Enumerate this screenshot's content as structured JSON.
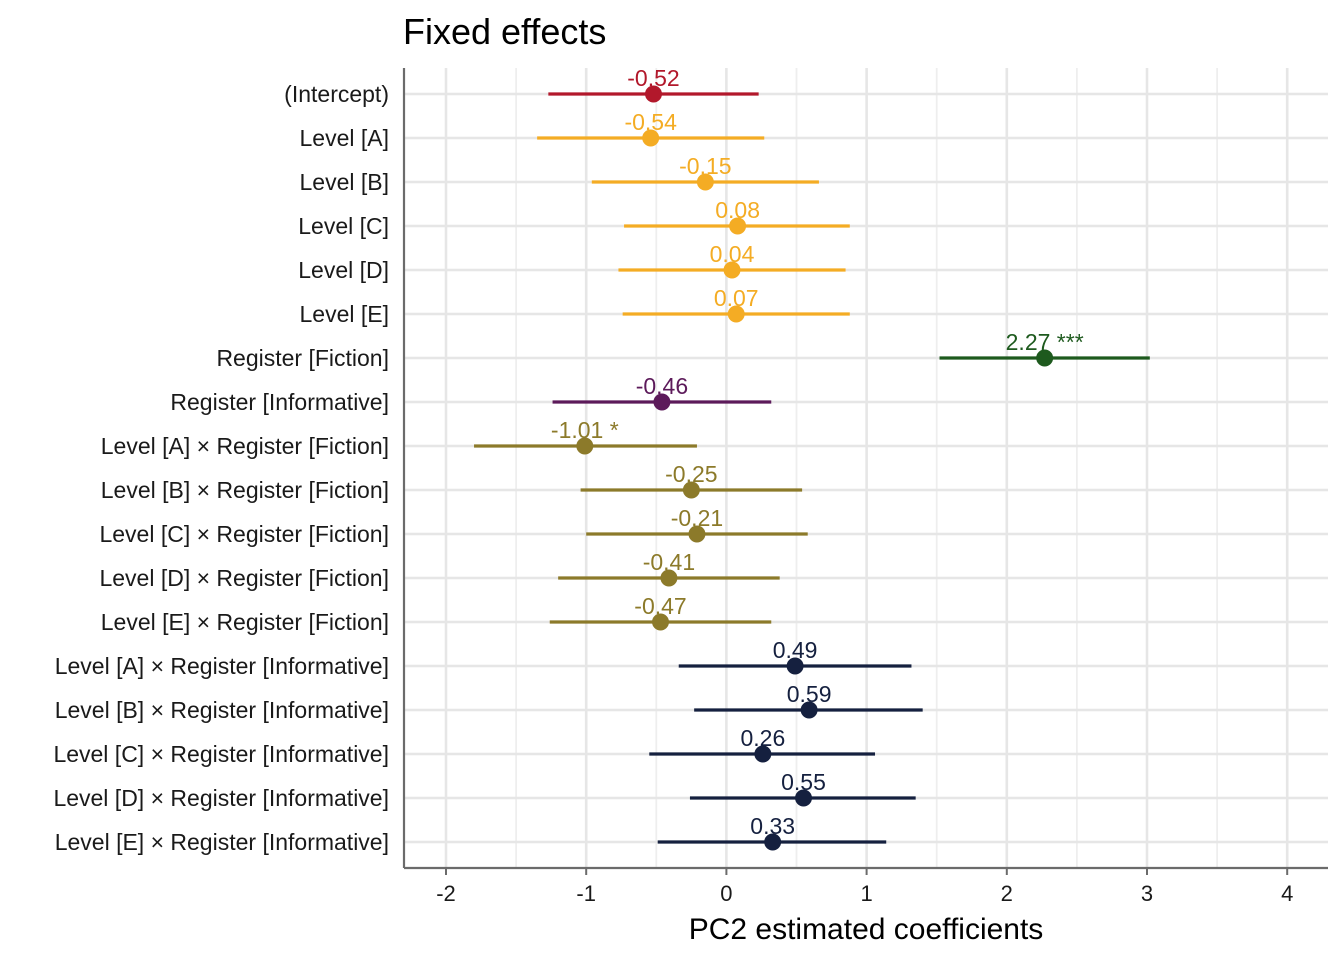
{
  "chart_data": {
    "type": "dot-whisker",
    "title": "Fixed effects",
    "xlabel": "PC2 estimated coefficients",
    "xlim": [
      -2.3,
      4.3
    ],
    "xticks": [
      -2,
      -1,
      0,
      1,
      2,
      3,
      4
    ],
    "grid": true,
    "colors": {
      "intercept": "#b2182b",
      "level": "#f4ac24",
      "register_fiction": "#1e5a1e",
      "register_informative": "#5c1a5a",
      "level_x_fiction": "#8c7a2a",
      "level_x_informative": "#15203f"
    },
    "terms": [
      {
        "term": "(Intercept)",
        "estimate": -0.52,
        "ci_low": -1.27,
        "ci_high": 0.23,
        "label": "-0.52",
        "group": "intercept"
      },
      {
        "term": "Level [A]",
        "estimate": -0.54,
        "ci_low": -1.35,
        "ci_high": 0.27,
        "label": "-0.54",
        "group": "level"
      },
      {
        "term": "Level [B]",
        "estimate": -0.15,
        "ci_low": -0.96,
        "ci_high": 0.66,
        "label": "-0.15",
        "group": "level"
      },
      {
        "term": "Level [C]",
        "estimate": 0.08,
        "ci_low": -0.73,
        "ci_high": 0.88,
        "label": "0.08",
        "group": "level"
      },
      {
        "term": "Level [D]",
        "estimate": 0.04,
        "ci_low": -0.77,
        "ci_high": 0.85,
        "label": "0.04",
        "group": "level"
      },
      {
        "term": "Level [E]",
        "estimate": 0.07,
        "ci_low": -0.74,
        "ci_high": 0.88,
        "label": "0.07",
        "group": "level"
      },
      {
        "term": "Register [Fiction]",
        "estimate": 2.27,
        "ci_low": 1.52,
        "ci_high": 3.02,
        "label": "2.27 ***",
        "group": "register_fiction"
      },
      {
        "term": "Register [Informative]",
        "estimate": -0.46,
        "ci_low": -1.24,
        "ci_high": 0.32,
        "label": "-0.46",
        "group": "register_informative"
      },
      {
        "term": "Level [A] × Register [Fiction]",
        "estimate": -1.01,
        "ci_low": -1.8,
        "ci_high": -0.21,
        "label": "-1.01 *",
        "group": "level_x_fiction"
      },
      {
        "term": "Level [B] × Register [Fiction]",
        "estimate": -0.25,
        "ci_low": -1.04,
        "ci_high": 0.54,
        "label": "-0.25",
        "group": "level_x_fiction"
      },
      {
        "term": "Level [C] × Register [Fiction]",
        "estimate": -0.21,
        "ci_low": -1.0,
        "ci_high": 0.58,
        "label": "-0.21",
        "group": "level_x_fiction"
      },
      {
        "term": "Level [D] × Register [Fiction]",
        "estimate": -0.41,
        "ci_low": -1.2,
        "ci_high": 0.38,
        "label": "-0.41",
        "group": "level_x_fiction"
      },
      {
        "term": "Level [E] × Register [Fiction]",
        "estimate": -0.47,
        "ci_low": -1.26,
        "ci_high": 0.32,
        "label": "-0.47",
        "group": "level_x_fiction"
      },
      {
        "term": "Level [A] × Register [Informative]",
        "estimate": 0.49,
        "ci_low": -0.34,
        "ci_high": 1.32,
        "label": "0.49",
        "group": "level_x_informative"
      },
      {
        "term": "Level [B] × Register [Informative]",
        "estimate": 0.59,
        "ci_low": -0.23,
        "ci_high": 1.4,
        "label": "0.59",
        "group": "level_x_informative"
      },
      {
        "term": "Level [C] × Register [Informative]",
        "estimate": 0.26,
        "ci_low": -0.55,
        "ci_high": 1.06,
        "label": "0.26",
        "group": "level_x_informative"
      },
      {
        "term": "Level [D] × Register [Informative]",
        "estimate": 0.55,
        "ci_low": -0.26,
        "ci_high": 1.35,
        "label": "0.55",
        "group": "level_x_informative"
      },
      {
        "term": "Level [E] × Register [Informative]",
        "estimate": 0.33,
        "ci_low": -0.49,
        "ci_high": 1.14,
        "label": "0.33",
        "group": "level_x_informative"
      }
    ]
  }
}
